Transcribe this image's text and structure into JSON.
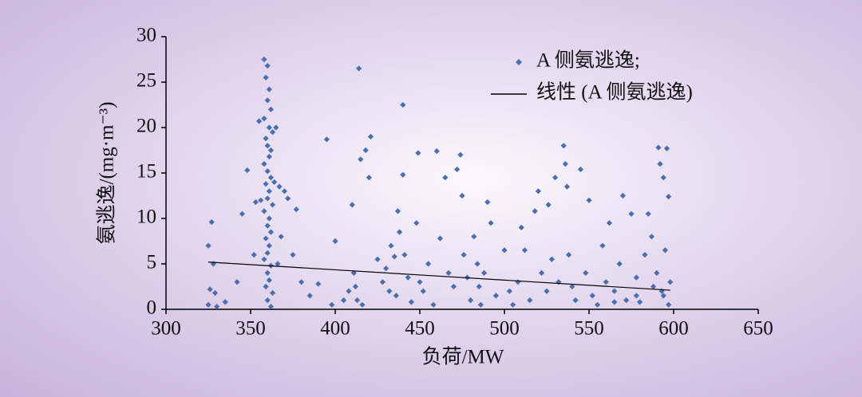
{
  "chart_data": {
    "type": "scatter",
    "xlabel": "负荷/MW",
    "ylabel": "氨逃逸/(mg·m⁻³)",
    "xlim": [
      300,
      650
    ],
    "xticks": [
      300,
      350,
      400,
      450,
      500,
      550,
      600,
      650
    ],
    "ylim": [
      0,
      30
    ],
    "yticks": [
      0,
      5,
      10,
      15,
      20,
      25,
      30
    ],
    "grid": false,
    "legend": "upper right",
    "series": [
      {
        "name": "A 侧氨逃逸;",
        "type": "scatter",
        "color": "#4a6fae",
        "x": [
          358,
          360,
          359,
          361,
          360,
          362,
          358,
          361,
          363,
          359,
          360,
          362,
          361,
          358,
          360,
          362,
          359,
          361,
          360,
          363,
          358,
          361,
          360,
          362,
          359,
          361,
          360,
          358,
          362,
          360,
          361,
          359,
          363,
          360,
          362,
          355,
          356,
          364,
          365,
          367,
          368,
          366,
          325,
          327,
          328,
          326,
          329,
          325,
          330,
          335,
          342,
          345,
          348,
          352,
          353,
          370,
          372,
          375,
          377,
          380,
          385,
          390,
          395,
          398,
          400,
          405,
          408,
          410,
          411,
          412,
          413,
          414,
          415,
          418,
          420,
          421,
          416,
          425,
          428,
          430,
          432,
          433,
          435,
          436,
          437,
          438,
          440,
          440,
          441,
          443,
          445,
          448,
          449,
          450,
          452,
          455,
          458,
          460,
          462,
          465,
          467,
          470,
          472,
          474,
          475,
          476,
          478,
          480,
          482,
          484,
          485,
          486,
          488,
          490,
          492,
          495,
          500,
          503,
          505,
          508,
          510,
          512,
          515,
          518,
          520,
          522,
          525,
          526,
          528,
          530,
          532,
          535,
          536,
          537,
          538,
          540,
          542,
          545,
          548,
          550,
          552,
          555,
          558,
          560,
          562,
          565,
          568,
          570,
          572,
          575,
          578,
          580,
          583,
          585,
          587,
          590,
          591,
          592,
          593,
          594,
          595,
          596,
          597,
          598,
          597,
          594,
          588,
          578,
          565
        ],
        "values": [
          27.5,
          26.8,
          25.5,
          24.2,
          23,
          22,
          21,
          20,
          19.5,
          18.8,
          18,
          17.5,
          16.8,
          16,
          15.2,
          14.5,
          13.8,
          13,
          12.2,
          11.5,
          10.8,
          10,
          9.2,
          8.5,
          7.8,
          7,
          6.2,
          5.5,
          4.8,
          4,
          3.2,
          2.5,
          1.8,
          1,
          0.3,
          20.7,
          12,
          14,
          20,
          13.5,
          8,
          5,
          7,
          9.6,
          5,
          2.2,
          1.8,
          0.5,
          0.3,
          0.8,
          3,
          10.5,
          15.3,
          6,
          11.8,
          13,
          12.2,
          6,
          11,
          3,
          1.5,
          2.8,
          18.7,
          0.5,
          7.5,
          1,
          2,
          11.5,
          4,
          2.5,
          1,
          26.5,
          16.5,
          17.5,
          14.5,
          19,
          0.5,
          5.5,
          3,
          4.5,
          2,
          7,
          5.8,
          1.5,
          10.8,
          8.5,
          22.5,
          14.8,
          6,
          3.5,
          0.8,
          9.5,
          17.2,
          3,
          2,
          5,
          0.5,
          17.4,
          7.8,
          14.5,
          4,
          2.5,
          15.4,
          17,
          12.5,
          6,
          3.5,
          1,
          8,
          5,
          2.5,
          0.5,
          4,
          11.8,
          9.5,
          1.5,
          6.5,
          2,
          0.5,
          3,
          9,
          6.5,
          1,
          10.8,
          13,
          4,
          2,
          11.5,
          5.5,
          14.5,
          3,
          18,
          16,
          13.5,
          6,
          2.5,
          1,
          15.4,
          4,
          12,
          1.5,
          0.5,
          7,
          3,
          9.5,
          2,
          5,
          12.5,
          1,
          10.5,
          3.5,
          0.8,
          6,
          10.5,
          8,
          4,
          17.8,
          16,
          2,
          14.5,
          6.5,
          17.7,
          12.4,
          3,
          0.5,
          1.5,
          2.5,
          1.5,
          0.8
        ]
      },
      {
        "name": "线性 (A 侧氨逃逸)",
        "type": "line",
        "color": "#000000",
        "x": [
          325,
          598
        ],
        "values": [
          5.2,
          2.1
        ]
      }
    ]
  }
}
